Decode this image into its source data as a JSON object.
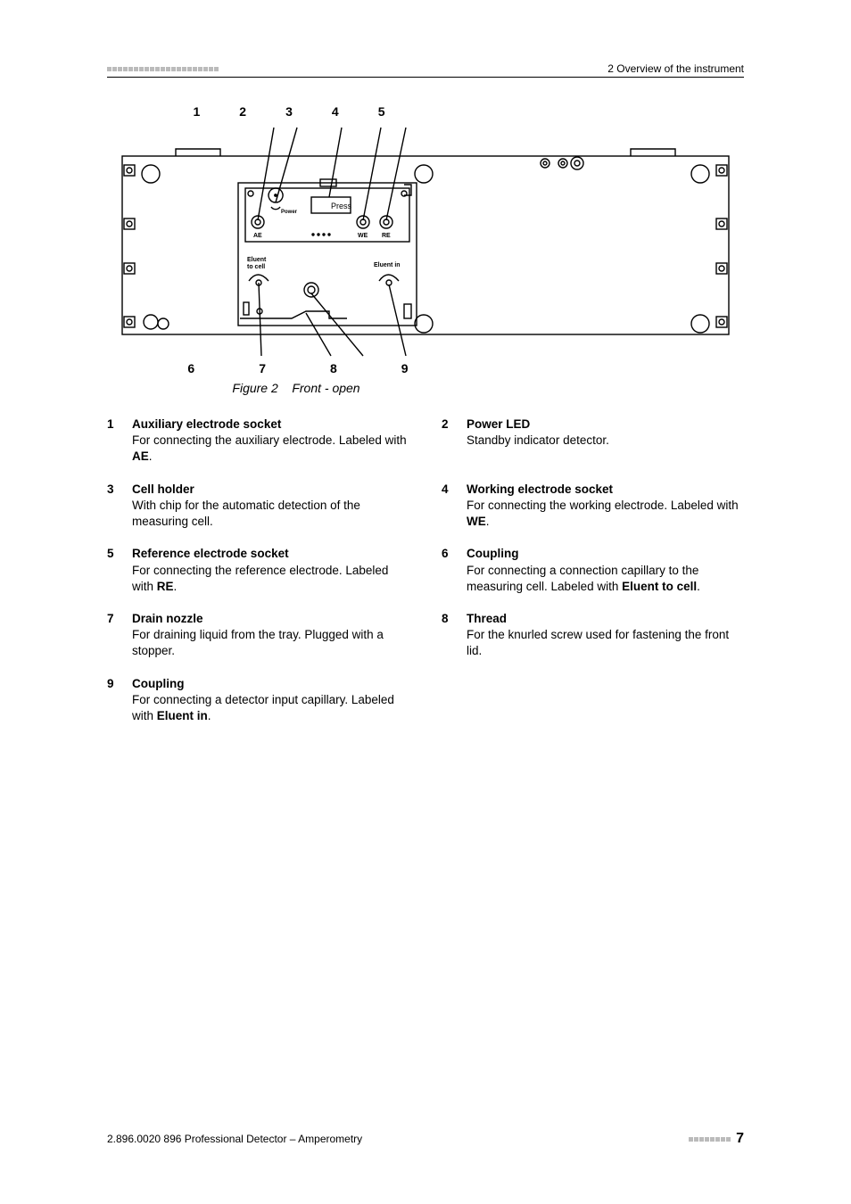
{
  "header": {
    "right": "2 Overview of the instrument"
  },
  "figure": {
    "top_callouts": [
      "1",
      "2",
      "3",
      "4",
      "5"
    ],
    "bottom_callouts": [
      "6",
      "7",
      "8",
      "9"
    ],
    "caption_label": "Figure 2",
    "caption_text": "Front - open",
    "labels": {
      "press": "Press",
      "power": "Power",
      "ae": "AE",
      "we": "WE",
      "re": "RE",
      "eluent_to_cell": "Eluent\nto cell",
      "eluent_in": "Eluent in"
    },
    "colors": {
      "stroke": "#000000",
      "fill": "#ffffff",
      "callout_line": "#000000"
    }
  },
  "legend": [
    {
      "n": "1",
      "title": "Auxiliary electrode socket",
      "body_pre": "For connecting the auxiliary electrode. Labeled with ",
      "bold": "AE",
      "body_post": "."
    },
    {
      "n": "2",
      "title": "Power LED",
      "body_pre": "Standby indicator detector.",
      "bold": "",
      "body_post": ""
    },
    {
      "n": "3",
      "title": "Cell holder",
      "body_pre": "With chip for the automatic detection of the measuring cell.",
      "bold": "",
      "body_post": ""
    },
    {
      "n": "4",
      "title": "Working electrode socket",
      "body_pre": "For connecting the working electrode. Labeled with ",
      "bold": "WE",
      "body_post": "."
    },
    {
      "n": "5",
      "title": "Reference electrode socket",
      "body_pre": "For connecting the reference electrode. Labeled with ",
      "bold": "RE",
      "body_post": "."
    },
    {
      "n": "6",
      "title": "Coupling",
      "body_pre": "For connecting a connection capillary to the measuring cell. Labeled with ",
      "bold": "Eluent to cell",
      "body_post": "."
    },
    {
      "n": "7",
      "title": "Drain nozzle",
      "body_pre": "For draining liquid from the tray. Plugged with a stopper.",
      "bold": "",
      "body_post": ""
    },
    {
      "n": "8",
      "title": "Thread",
      "body_pre": "For the knurled screw used for fastening the front lid.",
      "bold": "",
      "body_post": ""
    },
    {
      "n": "9",
      "title": "Coupling",
      "body_pre": "For connecting a detector input capillary. Labeled with ",
      "bold": "Eluent in",
      "body_post": "."
    }
  ],
  "footer": {
    "left": "2.896.0020 896 Professional Detector – Amperometry",
    "page": "7"
  }
}
